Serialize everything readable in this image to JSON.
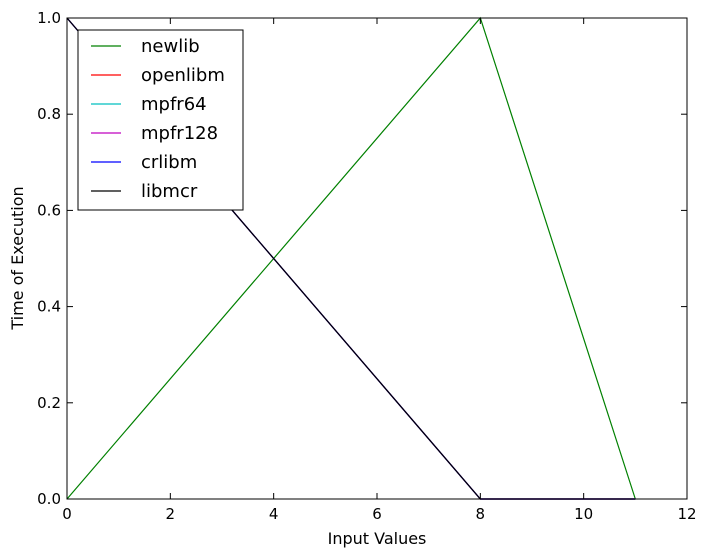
{
  "chart_data": {
    "type": "line",
    "xlabel": "Input Values",
    "ylabel": "Time of Execution",
    "xlim": [
      0,
      12
    ],
    "ylim": [
      0.0,
      1.0
    ],
    "xticks": [
      "0",
      "2",
      "4",
      "6",
      "8",
      "10",
      "12"
    ],
    "yticks": [
      "0.0",
      "0.2",
      "0.4",
      "0.6",
      "0.8",
      "1.0"
    ],
    "grid": false,
    "legend_position": "upper-left",
    "series": [
      {
        "name": "newlib",
        "color": "#008000",
        "points": [
          [
            0,
            0.0
          ],
          [
            8,
            1.0
          ],
          [
            11,
            0.0
          ]
        ]
      },
      {
        "name": "openlibm",
        "color": "#ff0000",
        "points": [
          [
            0,
            1.0
          ],
          [
            8,
            0.0
          ],
          [
            11,
            0.0
          ]
        ]
      },
      {
        "name": "mpfr64",
        "color": "#00bfbf",
        "points": [
          [
            0,
            1.0
          ],
          [
            8,
            0.0
          ],
          [
            11,
            0.0
          ]
        ]
      },
      {
        "name": "mpfr128",
        "color": "#bf00bf",
        "points": [
          [
            0,
            1.0
          ],
          [
            8,
            0.0
          ],
          [
            11,
            0.0
          ]
        ]
      },
      {
        "name": "crlibm",
        "color": "#0000ff",
        "points": [
          [
            0,
            1.0
          ],
          [
            8,
            0.0
          ],
          [
            11,
            0.0
          ]
        ]
      },
      {
        "name": "libmcr",
        "color": "#000000",
        "points": [
          [
            0,
            1.0
          ],
          [
            8,
            0.0
          ],
          [
            11,
            0.0
          ]
        ]
      }
    ]
  }
}
